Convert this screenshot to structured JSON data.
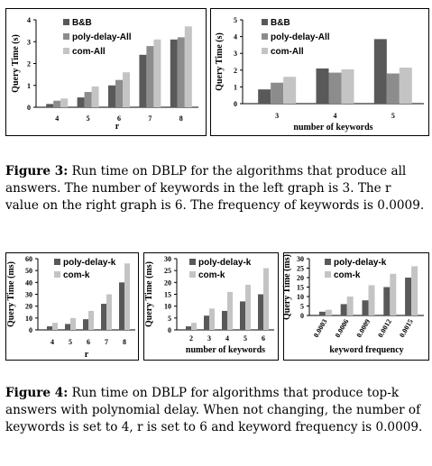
{
  "figure3": {
    "caption_label": "Figure 3:",
    "caption_text": "Run time on DBLP for the algorithms that produce all answers. The number of keywords in the left graph is 3. The r value on the right graph is 6. The frequency of keywords is 0.0009."
  },
  "figure4": {
    "caption_label": "Figure 4:",
    "caption_text": "Run time on DBLP for algorithms that produce top-k answers with polynomial delay. When not changing, the number of keywords is set to 4, r is set to 6 and keyword frequency is 0.0009."
  },
  "colors": {
    "series_dark": "#595959",
    "series_mid": "#8c8c8c",
    "series_light": "#c4c4c4"
  },
  "chart_data": [
    {
      "id": "f3a",
      "type": "bar",
      "xlabel": "r",
      "ylabel": "Query Time (s)",
      "ylim": [
        0,
        4
      ],
      "yticks": [
        0,
        1,
        2,
        3,
        4
      ],
      "categories": [
        "4",
        "5",
        "6",
        "7",
        "8"
      ],
      "series": [
        {
          "name": "B&B",
          "values": [
            0.15,
            0.45,
            1.0,
            2.4,
            3.1
          ]
        },
        {
          "name": "poly-delay-All",
          "values": [
            0.3,
            0.7,
            1.25,
            2.8,
            3.2
          ]
        },
        {
          "name": "com-All",
          "values": [
            0.4,
            0.95,
            1.6,
            3.1,
            3.7
          ]
        }
      ]
    },
    {
      "id": "f3b",
      "type": "bar",
      "xlabel": "number of keywords",
      "ylabel": "Query Time (s)",
      "ylim": [
        0,
        5
      ],
      "yticks": [
        0,
        1,
        2,
        3,
        4,
        5
      ],
      "categories": [
        "3",
        "4",
        "5"
      ],
      "series": [
        {
          "name": "B&B",
          "values": [
            0.85,
            2.1,
            3.85
          ]
        },
        {
          "name": "poly-delay-All",
          "values": [
            1.25,
            1.85,
            1.8
          ]
        },
        {
          "name": "com-All",
          "values": [
            1.6,
            2.05,
            2.15
          ]
        }
      ]
    },
    {
      "id": "f4a",
      "type": "bar",
      "xlabel": "r",
      "ylabel": "Query Time (ms)",
      "ylim": [
        0,
        60
      ],
      "yticks": [
        0,
        10,
        20,
        30,
        40,
        50,
        60
      ],
      "categories": [
        "4",
        "5",
        "6",
        "7",
        "8"
      ],
      "series": [
        {
          "name": "poly-delay-k",
          "values": [
            3,
            5,
            9,
            22,
            40
          ]
        },
        {
          "name": "com-k",
          "values": [
            6,
            10,
            16,
            30,
            56
          ]
        }
      ]
    },
    {
      "id": "f4b",
      "type": "bar",
      "xlabel": "number of keywords",
      "ylabel": "Query Time (ms)",
      "ylim": [
        0,
        30
      ],
      "yticks": [
        0,
        5,
        10,
        15,
        20,
        25,
        30
      ],
      "categories": [
        "2",
        "3",
        "4",
        "5",
        "6"
      ],
      "series": [
        {
          "name": "poly-delay-k",
          "values": [
            1.5,
            6,
            8,
            12,
            15
          ]
        },
        {
          "name": "com-k",
          "values": [
            3,
            9,
            16,
            19,
            26
          ]
        }
      ]
    },
    {
      "id": "f4c",
      "type": "bar",
      "xlabel": "keyword frequency",
      "ylabel": "Query Time (ms)",
      "ylim": [
        0,
        30
      ],
      "yticks": [
        0,
        5,
        10,
        15,
        20,
        25,
        30
      ],
      "categories": [
        "0.0003",
        "0.0006",
        "0.0009",
        "0.0012",
        "0.0015"
      ],
      "series": [
        {
          "name": "poly-delay-k",
          "values": [
            2,
            6,
            8,
            15,
            20
          ]
        },
        {
          "name": "com-k",
          "values": [
            3,
            10,
            16,
            22,
            26
          ]
        }
      ]
    }
  ]
}
